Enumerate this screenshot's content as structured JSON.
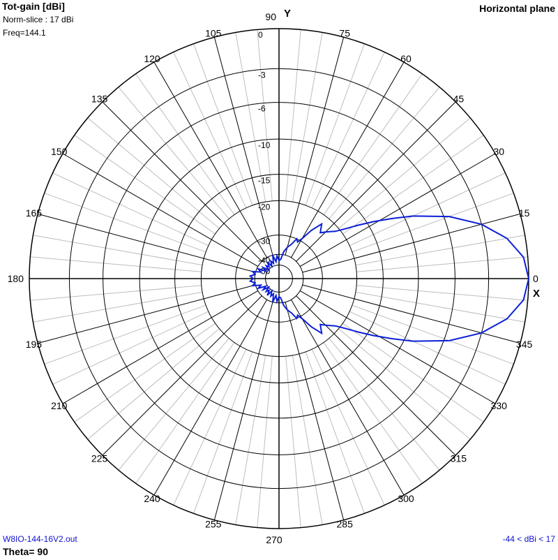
{
  "header": {
    "title": "Tot-gain [dBi]",
    "norm_slice": "Norm-slice : 17 dBi",
    "freq": "Freq=144.1",
    "plane": "Horizontal plane"
  },
  "footer": {
    "filename": "W8IO-144-16V2.out",
    "theta": "Theta= 90",
    "range": "-44 < dBi < 17"
  },
  "colors": {
    "pattern": "#0b1fd6",
    "grid": "#000000",
    "fine_grid": "#bdbdbd",
    "footer_text": "#1010d0"
  },
  "chart_data": {
    "type": "polar",
    "title": "Tot-gain [dBi]",
    "plane": "Horizontal plane",
    "axis_x_label": "X",
    "axis_y_label": "Y",
    "angle_labels": [
      "0",
      "15",
      "30",
      "45",
      "60",
      "75",
      "90",
      "105",
      "120",
      "135",
      "150",
      "165",
      "180",
      "195",
      "210",
      "225",
      "240",
      "255",
      "270",
      "285",
      "300",
      "315",
      "330",
      "345"
    ],
    "radial_labels": [
      "0",
      "-3",
      "-6",
      "-10",
      "-15",
      "-20",
      "-30",
      "-40",
      "-50"
    ],
    "radial_values": [
      0,
      -3,
      -6,
      -10,
      -15,
      -20,
      -30,
      -40,
      -50
    ],
    "max_gain_dbi": 17,
    "min_gain_dbi": -44,
    "series": [
      {
        "angles_deg": [
          0,
          5,
          10,
          15,
          20,
          25,
          28,
          31,
          34,
          37,
          40,
          44,
          48,
          52,
          56,
          60,
          63,
          66,
          70,
          75,
          80,
          85,
          90,
          95,
          100,
          105,
          110,
          115,
          120,
          125,
          130,
          135,
          140,
          145,
          150,
          155,
          160,
          165,
          170,
          175,
          180
        ],
        "gain_db": [
          0,
          -0.3,
          -1.3,
          -3,
          -5.5,
          -9,
          -11.5,
          -14,
          -16.5,
          -19,
          -21,
          -22.5,
          -24,
          -22,
          -25,
          -29,
          -31,
          -30,
          -33,
          -35,
          -38,
          -44,
          -45,
          -41,
          -46,
          -40,
          -47,
          -44,
          -49,
          -43,
          -48,
          -45,
          -50,
          -44,
          -48,
          -41,
          -44,
          -38,
          -40,
          -37,
          -39
        ]
      }
    ]
  }
}
